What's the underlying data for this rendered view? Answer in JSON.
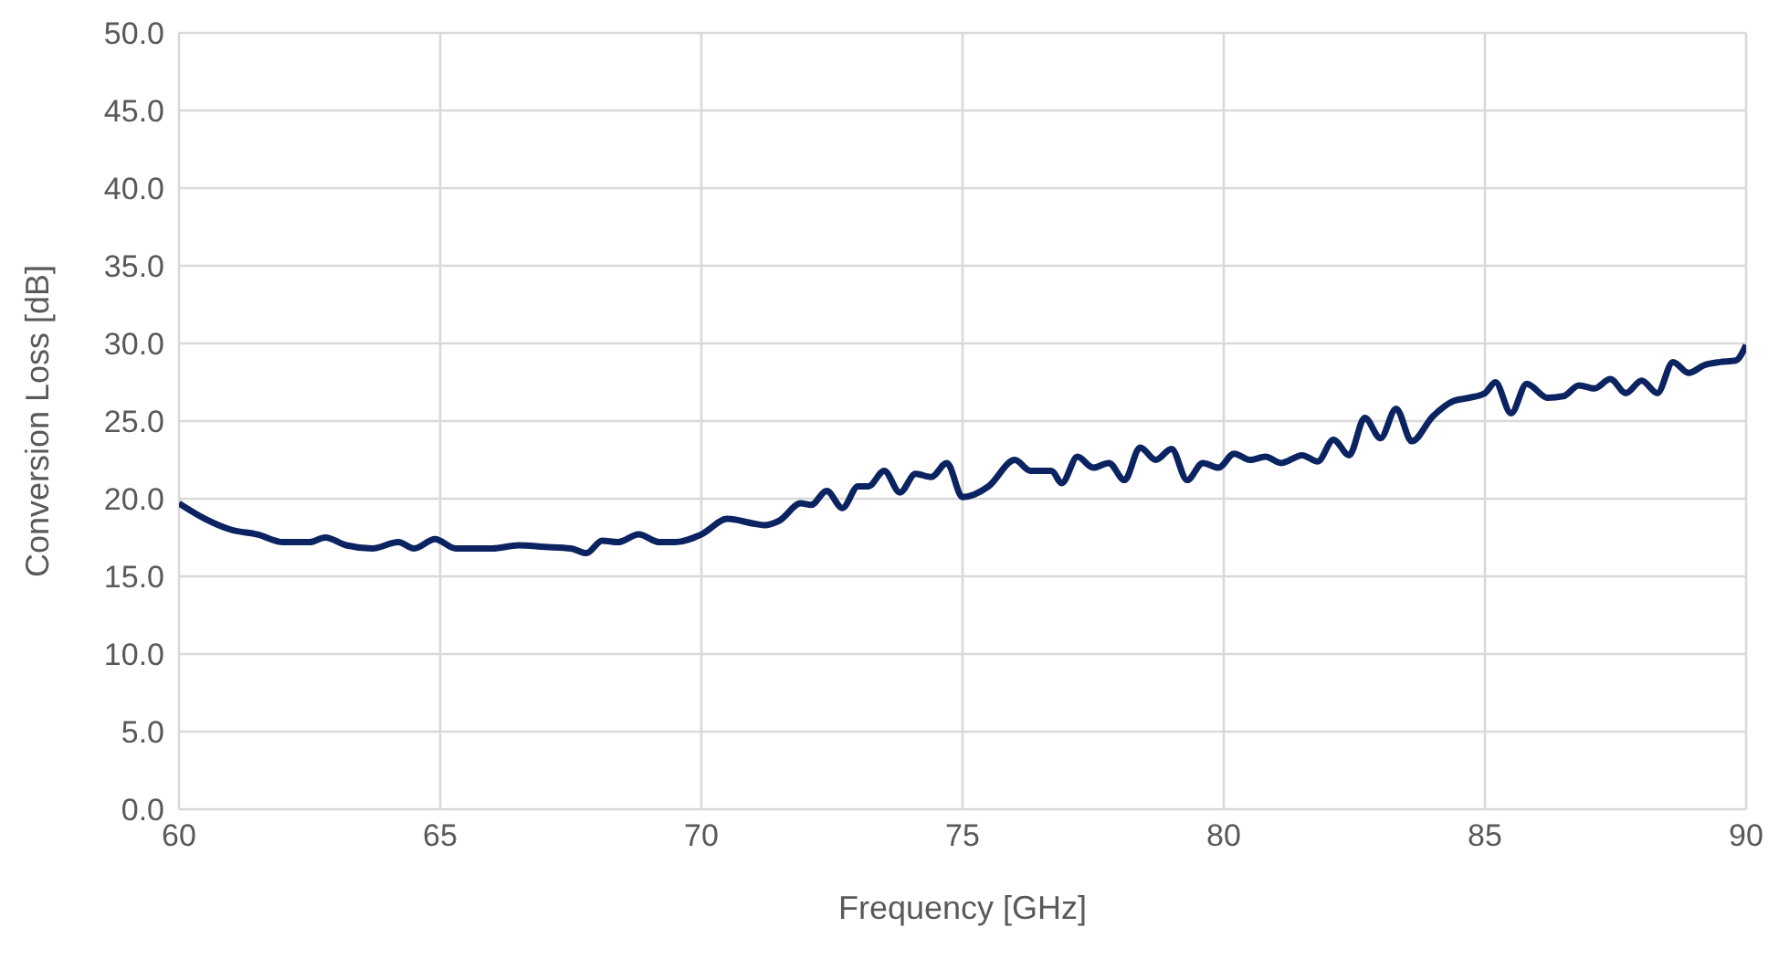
{
  "chart_data": {
    "type": "line",
    "xlabel": "Frequency [GHz]",
    "ylabel": "Conversion Loss [dB]",
    "x": [
      60,
      60.5,
      61,
      61.5,
      62,
      62.5,
      62.8,
      63.2,
      63.7,
      64.2,
      64.5,
      64.9,
      65.3,
      66,
      66.5,
      67,
      67.5,
      67.8,
      68.1,
      68.4,
      68.8,
      69.2,
      69.5,
      70,
      70.5,
      71,
      71.2,
      71.5,
      71.9,
      72.1,
      72.4,
      72.7,
      73,
      73.2,
      73.5,
      73.8,
      74.1,
      74.4,
      74.7,
      75,
      75.5,
      76,
      76.3,
      76.7,
      76.9,
      77.2,
      77.5,
      77.8,
      78.1,
      78.4,
      78.7,
      79,
      79.3,
      79.6,
      79.9,
      80.2,
      80.5,
      80.8,
      81.1,
      81.5,
      81.8,
      82.1,
      82.4,
      82.7,
      83,
      83.3,
      83.6,
      84,
      84.4,
      84.7,
      85,
      85.2,
      85.5,
      85.8,
      86.2,
      86.5,
      86.8,
      87.1,
      87.4,
      87.7,
      88,
      88.3,
      88.6,
      88.9,
      89.2,
      89.5,
      89.8,
      90
    ],
    "series": [
      {
        "color": "#0b2461",
        "values": [
          19.7,
          18.7,
          18.0,
          17.7,
          17.2,
          17.2,
          17.5,
          17.0,
          16.8,
          17.2,
          16.8,
          17.4,
          16.8,
          16.8,
          17.0,
          16.9,
          16.8,
          16.5,
          17.3,
          17.2,
          17.7,
          17.2,
          17.2,
          17.7,
          18.7,
          18.4,
          18.3,
          18.6,
          19.7,
          19.6,
          20.5,
          19.4,
          20.8,
          20.8,
          21.8,
          20.4,
          21.6,
          21.4,
          22.3,
          20.1,
          20.8,
          22.5,
          21.8,
          21.8,
          21.0,
          22.7,
          22.0,
          22.3,
          21.2,
          23.3,
          22.5,
          23.2,
          21.2,
          22.3,
          22.0,
          22.9,
          22.5,
          22.7,
          22.3,
          22.8,
          22.4,
          23.8,
          22.8,
          25.2,
          23.9,
          25.8,
          23.7,
          25.3,
          26.3,
          26.5,
          26.8,
          27.5,
          25.5,
          27.4,
          26.5,
          26.6,
          27.3,
          27.1,
          27.7,
          26.8,
          27.6,
          26.8,
          28.8,
          28.1,
          28.6,
          28.8,
          28.9,
          29.9
        ]
      }
    ],
    "xlim": [
      60,
      90
    ],
    "xticks": [
      60,
      65,
      70,
      75,
      80,
      85,
      90
    ],
    "ylim": [
      0,
      50
    ],
    "yticks": [
      {
        "value": 0,
        "label": "0.0"
      },
      {
        "value": 5,
        "label": "5.0"
      },
      {
        "value": 10,
        "label": "10.0"
      },
      {
        "value": 15,
        "label": "15.0"
      },
      {
        "value": 20,
        "label": "20.0"
      },
      {
        "value": 25,
        "label": "25.0"
      },
      {
        "value": 30,
        "label": "30.0"
      },
      {
        "value": 35,
        "label": "35.0"
      },
      {
        "value": 40,
        "label": "40.0"
      },
      {
        "value": 45,
        "label": "45.0"
      },
      {
        "value": 50,
        "label": "50.0"
      }
    ],
    "grid": true,
    "marker": "none",
    "line_style": "solid",
    "legend": false
  }
}
